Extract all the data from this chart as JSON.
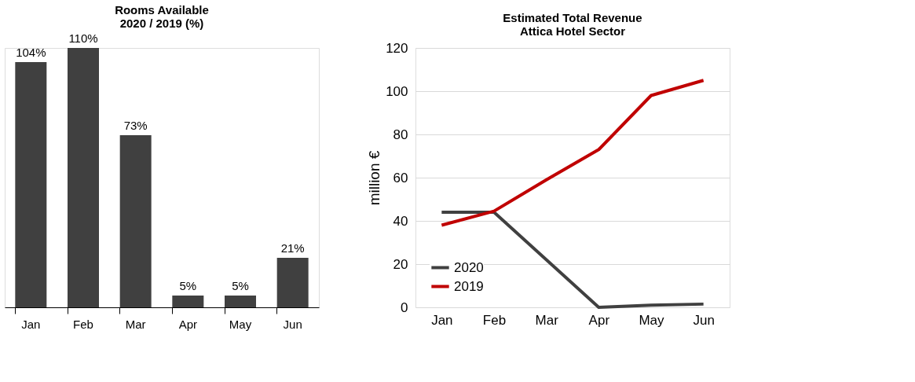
{
  "chart_data": [
    {
      "type": "bar",
      "title": "Rooms Available\n2020 / 2019 (%)",
      "categories": [
        "Jan",
        "Feb",
        "Mar",
        "Apr",
        "May",
        "Jun"
      ],
      "values": [
        104,
        110,
        73,
        5,
        5,
        21
      ],
      "value_labels": [
        "104%",
        "110%",
        "73%",
        "5%",
        "5%",
        "21%"
      ],
      "color": "#404040",
      "grid": false,
      "tick_labels": "x"
    },
    {
      "type": "line",
      "title": "Estimated Total Revenue\nAttica Hotel Sector",
      "ylabel": "million €",
      "categories": [
        "Jan",
        "Feb",
        "Mar",
        "Apr",
        "May",
        "Jun"
      ],
      "series": [
        {
          "name": "2020",
          "color": "#404040",
          "values": [
            44,
            44,
            22,
            0,
            1,
            1.5
          ]
        },
        {
          "name": "2019",
          "color": "#c00000",
          "values": [
            38,
            44.5,
            59,
            73,
            98,
            105
          ]
        }
      ],
      "ylim": [
        0,
        120
      ],
      "yticks": [
        0,
        20,
        40,
        60,
        80,
        100,
        120
      ],
      "grid": "y",
      "legend": "bottom left",
      "marker": "none",
      "line_style": "solid"
    }
  ]
}
